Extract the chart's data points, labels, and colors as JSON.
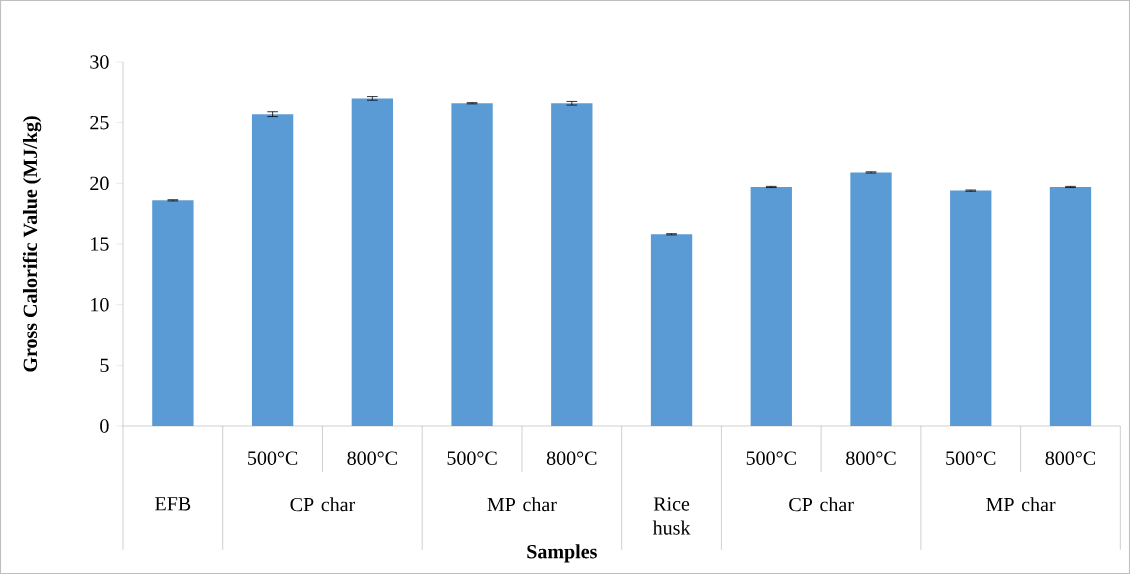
{
  "chart_data": {
    "type": "bar",
    "categories": [
      null,
      "500°C",
      "800°C",
      "500°C",
      "800°C",
      null,
      "500°C",
      "800°C",
      "500°C",
      "800°C"
    ],
    "values": [
      18.6,
      25.7,
      27.0,
      26.6,
      26.6,
      15.8,
      19.7,
      20.9,
      19.4,
      19.7
    ],
    "errors": [
      0.05,
      0.2,
      0.15,
      0.05,
      0.15,
      0.05,
      0.05,
      0.05,
      0.05,
      0.05
    ],
    "colors": [
      "#5b9bd5",
      "#5b9bd5",
      "#5b9bd5",
      "#5b9bd5",
      "#5b9bd5",
      "#5b9bd5",
      "#5b9bd5",
      "#5b9bd5",
      "#5b9bd5",
      "#5b9bd5"
    ],
    "ylabel": "Gross Calorific Value (MJ/kg)",
    "xlabel": "Samples",
    "ylim": [
      0,
      30
    ],
    "yticks": [
      0,
      5,
      10,
      15,
      20,
      25,
      30
    ],
    "annotations": [
      "EFB",
      "CP char",
      "MP char",
      "Rice husk",
      "CP char",
      "MP char"
    ]
  }
}
